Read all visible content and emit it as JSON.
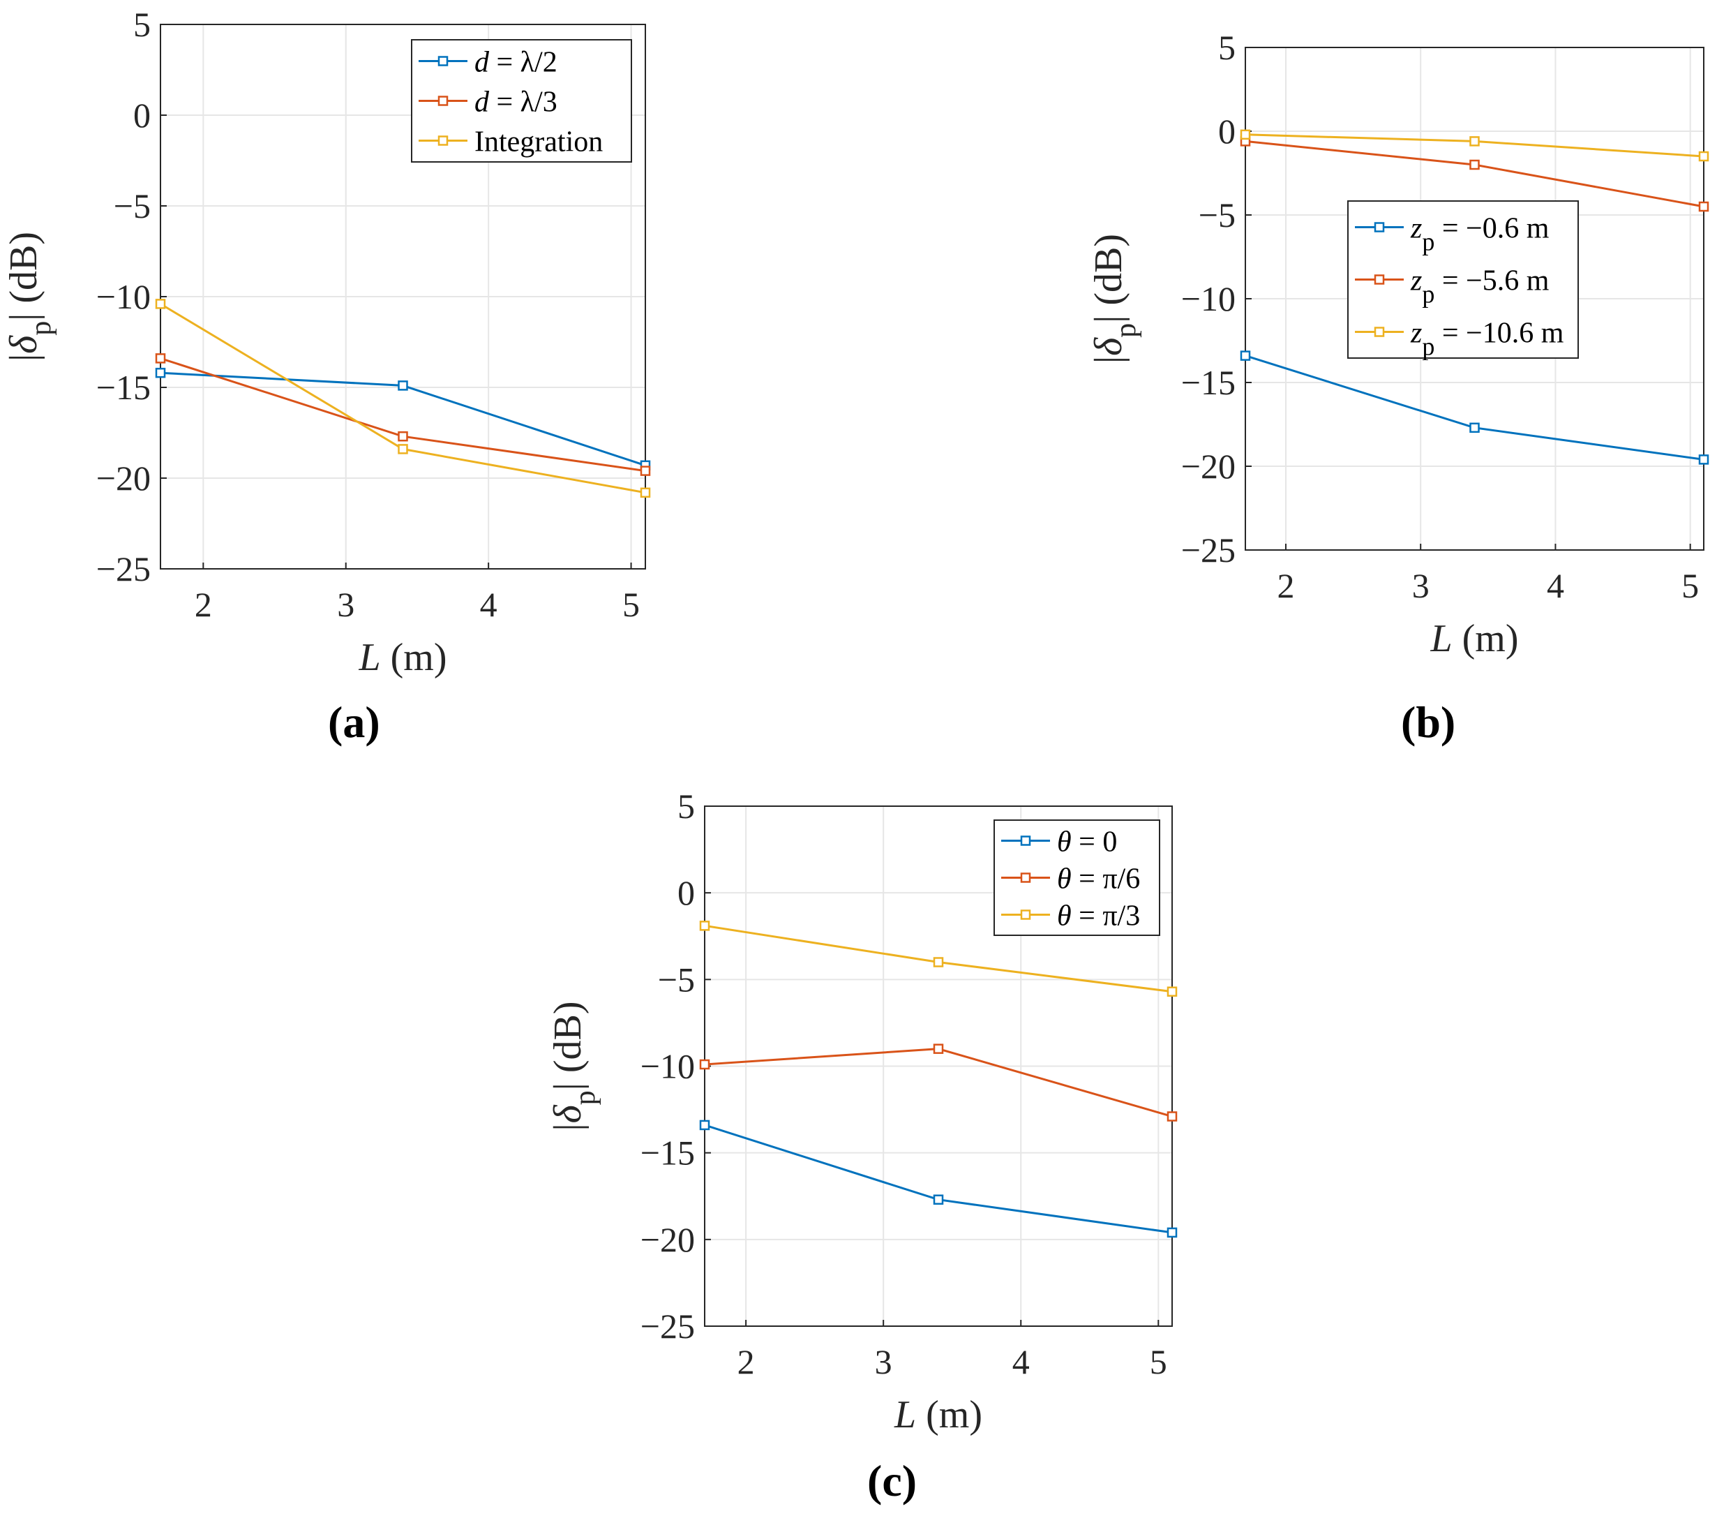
{
  "colors": {
    "blue": "#0072BD",
    "orange": "#D95319",
    "yellow": "#EDB120",
    "grid": "#e6e6e6",
    "axis": "#262626"
  },
  "chart_data": [
    {
      "id": "a",
      "panel_label": "(a)",
      "type": "line",
      "xlabel_var": "L",
      "xlabel_unit": " (m)",
      "ylabel_pre": "|",
      "ylabel_var": "δ",
      "ylabel_sub": "p",
      "ylabel_post": "| (dB)",
      "xlim": [
        1.7,
        5.1
      ],
      "ylim": [
        -25,
        5
      ],
      "xticks": [
        2,
        3,
        4,
        5
      ],
      "yticks": [
        5,
        0,
        -5,
        -10,
        -15,
        -20,
        -25
      ],
      "ytick_labels": [
        "5",
        "0",
        "−5",
        "−10",
        "−15",
        "−20",
        "−25"
      ],
      "grid": true,
      "legend_position": "top-right",
      "x": [
        1.7,
        3.4,
        5.1
      ],
      "series": [
        {
          "name": "d = λ/2",
          "label_var": "d",
          "label_rest": " = λ/2",
          "color": "#0072BD",
          "values": [
            -14.2,
            -14.9,
            -19.3
          ]
        },
        {
          "name": "d = λ/3",
          "label_var": "d",
          "label_rest": " = λ/3",
          "color": "#D95319",
          "values": [
            -13.4,
            -17.7,
            -19.6
          ]
        },
        {
          "name": "Integration",
          "label_var": "",
          "label_rest": "Integration",
          "color": "#EDB120",
          "values": [
            -10.4,
            -18.4,
            -20.8
          ]
        }
      ]
    },
    {
      "id": "b",
      "panel_label": "(b)",
      "type": "line",
      "xlabel_var": "L",
      "xlabel_unit": " (m)",
      "ylabel_pre": "|",
      "ylabel_var": "δ",
      "ylabel_sub": "p",
      "ylabel_post": "| (dB)",
      "xlim": [
        1.7,
        5.1
      ],
      "ylim": [
        -25,
        5
      ],
      "xticks": [
        2,
        3,
        4,
        5
      ],
      "yticks": [
        5,
        0,
        -5,
        -10,
        -15,
        -20,
        -25
      ],
      "ytick_labels": [
        "5",
        "0",
        "−5",
        "−10",
        "−15",
        "−20",
        "−25"
      ],
      "grid": true,
      "legend_position": "middle-center",
      "x": [
        1.7,
        3.4,
        5.1
      ],
      "series": [
        {
          "name": "z_p = −0.6 m",
          "label_var": "z",
          "label_sub": "p",
          "label_rest": " = −0.6 m",
          "color": "#0072BD",
          "values": [
            -13.4,
            -17.7,
            -19.6
          ]
        },
        {
          "name": "z_p = −5.6 m",
          "label_var": "z",
          "label_sub": "p",
          "label_rest": " = −5.6 m",
          "color": "#D95319",
          "values": [
            -0.6,
            -2.0,
            -4.5
          ]
        },
        {
          "name": "z_p = −10.6 m",
          "label_var": "z",
          "label_sub": "p",
          "label_rest": " = −10.6 m",
          "color": "#EDB120",
          "values": [
            -0.2,
            -0.6,
            -1.5
          ]
        }
      ]
    },
    {
      "id": "c",
      "panel_label": "(c)",
      "type": "line",
      "xlabel_var": "L",
      "xlabel_unit": " (m)",
      "ylabel_pre": "|",
      "ylabel_var": "δ",
      "ylabel_sub": "p",
      "ylabel_post": "| (dB)",
      "xlim": [
        1.7,
        5.1
      ],
      "ylim": [
        -25,
        5
      ],
      "xticks": [
        2,
        3,
        4,
        5
      ],
      "yticks": [
        5,
        0,
        -5,
        -10,
        -15,
        -20,
        -25
      ],
      "ytick_labels": [
        "5",
        "0",
        "−5",
        "−10",
        "−15",
        "−20",
        "−25"
      ],
      "grid": true,
      "legend_position": "top-right",
      "x": [
        1.7,
        3.4,
        5.1
      ],
      "series": [
        {
          "name": "θ = 0",
          "label_var": "θ",
          "label_rest": " = 0",
          "color": "#0072BD",
          "values": [
            -13.4,
            -17.7,
            -19.6
          ]
        },
        {
          "name": "θ = π/6",
          "label_var": "θ",
          "label_rest": " = π/6",
          "color": "#D95319",
          "values": [
            -9.9,
            -9.0,
            -12.9
          ]
        },
        {
          "name": "θ = π/3",
          "label_var": "θ",
          "label_rest": " = π/3",
          "color": "#EDB120",
          "values": [
            -1.9,
            -4.0,
            -5.7
          ]
        }
      ]
    }
  ]
}
